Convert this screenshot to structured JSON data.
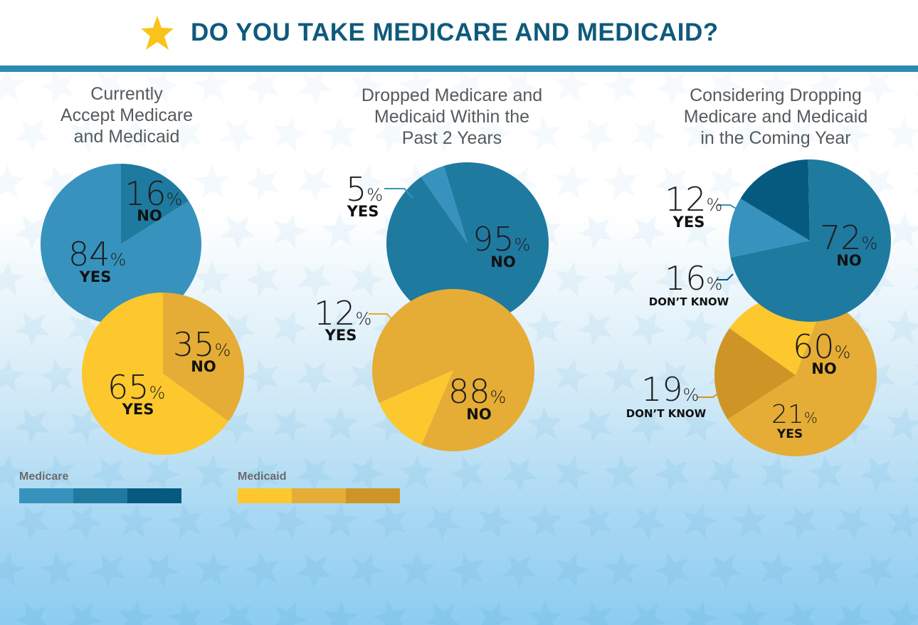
{
  "title": "DO YOU TAKE MEDICARE AND MEDICAID?",
  "icons": {
    "title": "star-icon",
    "background": "star-pattern"
  },
  "colors": {
    "medicare": [
      "#3793bd",
      "#1f7aa0",
      "#065a80"
    ],
    "medicaid": [
      "#fcc82d",
      "#e5ad35",
      "#cf9426"
    ],
    "header_rule": "#2b8ab5",
    "title": "#0f5a7c"
  },
  "legend": {
    "medicare_label": "Medicare",
    "medicaid_label": "Medicaid"
  },
  "chart_data": [
    {
      "type": "pie",
      "title": "Currently\nAccept Medicare\nand Medicaid",
      "series": [
        {
          "name": "Medicare",
          "slices": [
            {
              "label": "NO",
              "value": 16,
              "pct": "16"
            },
            {
              "label": "YES",
              "value": 84,
              "pct": "84"
            }
          ]
        },
        {
          "name": "Medicaid",
          "slices": [
            {
              "label": "NO",
              "value": 35,
              "pct": "35"
            },
            {
              "label": "YES",
              "value": 65,
              "pct": "65"
            }
          ]
        }
      ]
    },
    {
      "type": "pie",
      "title": "Dropped Medicare and\nMedicaid Within the\nPast 2 Years",
      "series": [
        {
          "name": "Medicare",
          "slices": [
            {
              "label": "YES",
              "value": 5,
              "pct": "5"
            },
            {
              "label": "NO",
              "value": 95,
              "pct": "95"
            }
          ]
        },
        {
          "name": "Medicaid",
          "slices": [
            {
              "label": "YES",
              "value": 12,
              "pct": "12"
            },
            {
              "label": "NO",
              "value": 88,
              "pct": "88"
            }
          ]
        }
      ]
    },
    {
      "type": "pie",
      "title": "Considering Dropping\nMedicare and Medicaid\nin the Coming Year",
      "series": [
        {
          "name": "Medicare",
          "slices": [
            {
              "label": "YES",
              "value": 12,
              "pct": "12"
            },
            {
              "label": "DON’T KNOW",
              "value": 16,
              "pct": "16"
            },
            {
              "label": "NO",
              "value": 72,
              "pct": "72"
            }
          ]
        },
        {
          "name": "Medicaid",
          "slices": [
            {
              "label": "DON’T KNOW",
              "value": 19,
              "pct": "19"
            },
            {
              "label": "YES",
              "value": 21,
              "pct": "21"
            },
            {
              "label": "NO",
              "value": 60,
              "pct": "60"
            }
          ]
        }
      ]
    }
  ]
}
